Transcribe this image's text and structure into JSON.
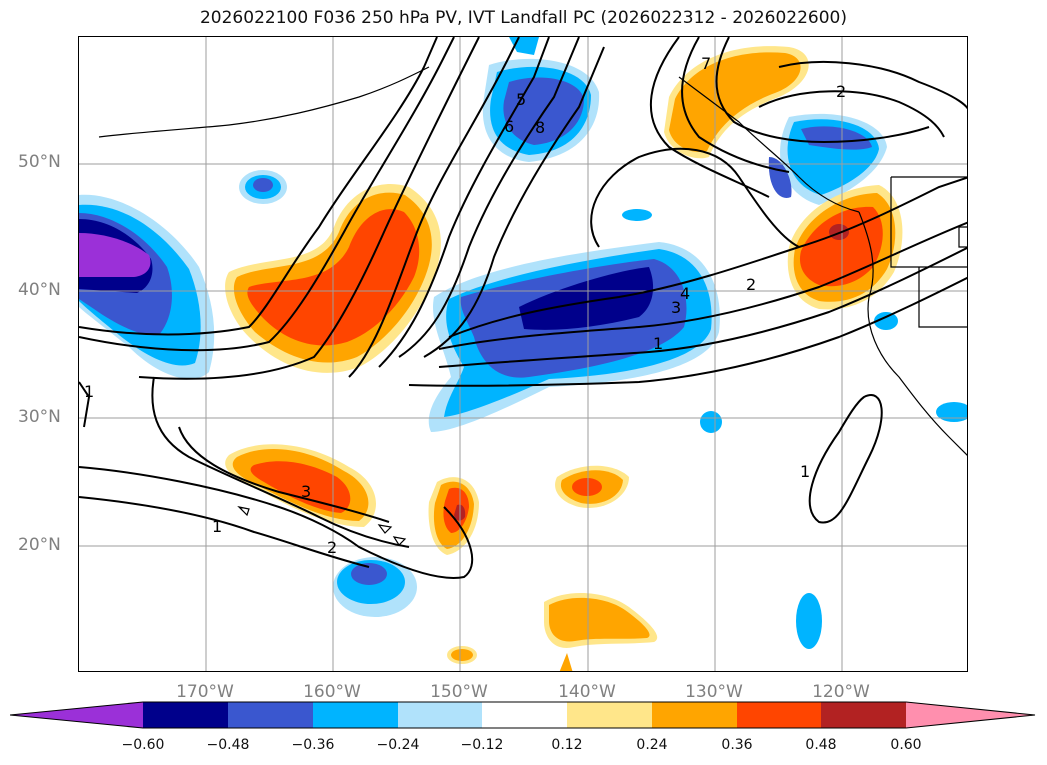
{
  "title": "2026022100 F036 250 hPa PV, IVT Landfall PC (2026022312 - 2026022600)",
  "latitude_labels": [
    "50°N",
    "40°N",
    "30°N",
    "20°N"
  ],
  "longitude_labels": [
    "170°W",
    "160°W",
    "150°W",
    "140°W",
    "130°W",
    "120°W"
  ],
  "contour_labels": [
    "5",
    "6",
    "8",
    "7",
    "2",
    "3",
    "4",
    "2",
    "1",
    "1",
    "3",
    "1",
    "2",
    "1"
  ],
  "colorbar": {
    "ticks": [
      "−0.60",
      "−0.48",
      "−0.36",
      "−0.24",
      "−0.12",
      "0.12",
      "0.24",
      "0.36",
      "0.48",
      "0.60"
    ],
    "colors": [
      "#9b30d8",
      "#00008b",
      "#3a57cf",
      "#00b4ff",
      "#b0e2fb",
      "#ffffff",
      "#ffe68a",
      "#ffa500",
      "#ff4500",
      "#b22222",
      "#ff8fae"
    ]
  },
  "colors": {
    "label_gray": "#808080",
    "contour": "#000000",
    "grid": "#9e9e9e"
  }
}
